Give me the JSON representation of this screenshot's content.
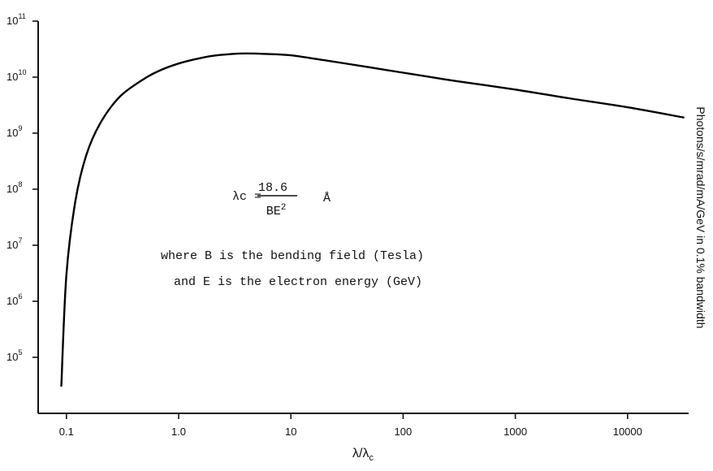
{
  "chart_data": {
    "type": "line",
    "x_scale": "log",
    "y_scale": "log",
    "xlim": [
      0.056,
      35000
    ],
    "ylim": [
      10000,
      100000000000
    ],
    "x_ticks": [
      {
        "value": 0.1,
        "label": "0.1"
      },
      {
        "value": 1,
        "label": "1.0"
      },
      {
        "value": 10,
        "label": "10"
      },
      {
        "value": 100,
        "label": "100"
      },
      {
        "value": 1000,
        "label": "1000"
      },
      {
        "value": 10000,
        "label": "10000"
      }
    ],
    "y_ticks": [
      {
        "value": 100000,
        "base": "10",
        "exp": "5"
      },
      {
        "value": 1000000,
        "base": "10",
        "exp": "6"
      },
      {
        "value": 10000000,
        "base": "10",
        "exp": "7"
      },
      {
        "value": 100000000,
        "base": "10",
        "exp": "8"
      },
      {
        "value": 1000000000,
        "base": "10",
        "exp": "9"
      },
      {
        "value": 10000000000,
        "base": "10",
        "exp": "10"
      },
      {
        "value": 100000000000,
        "base": "10",
        "exp": "11"
      }
    ],
    "xlabel": "λ/λc",
    "ylabel": "Photons/s/mrad/mA/GeV in 0.1% bandwidth",
    "grid": false,
    "series": [
      {
        "x": [
          0.09,
          0.1,
          0.12,
          0.15,
          0.2,
          0.3,
          0.5,
          0.7,
          1.0,
          1.5,
          2,
          3,
          4,
          6,
          10,
          20,
          50,
          100,
          300,
          1000,
          3000,
          10000,
          32000
        ],
        "y": [
          30000,
          3000000,
          60000000,
          400000000,
          1500000000,
          4500000000,
          9500000000,
          13500000000,
          17500000000,
          21500000000,
          24000000000,
          26000000000,
          26500000000,
          26000000000,
          24500000000,
          20000000000,
          15000000000,
          12000000000,
          8500000000,
          6000000000,
          4200000000,
          2900000000,
          1900000000
        ]
      }
    ]
  },
  "annotation": {
    "lambda_c": "λc =",
    "numerator": "18.6",
    "denominator_base": "BE",
    "denominator_exp": "2",
    "unit": "Å",
    "line1": "where B is the bending field (Tesla)",
    "line2": "and  E is the electron energy (GeV)"
  }
}
